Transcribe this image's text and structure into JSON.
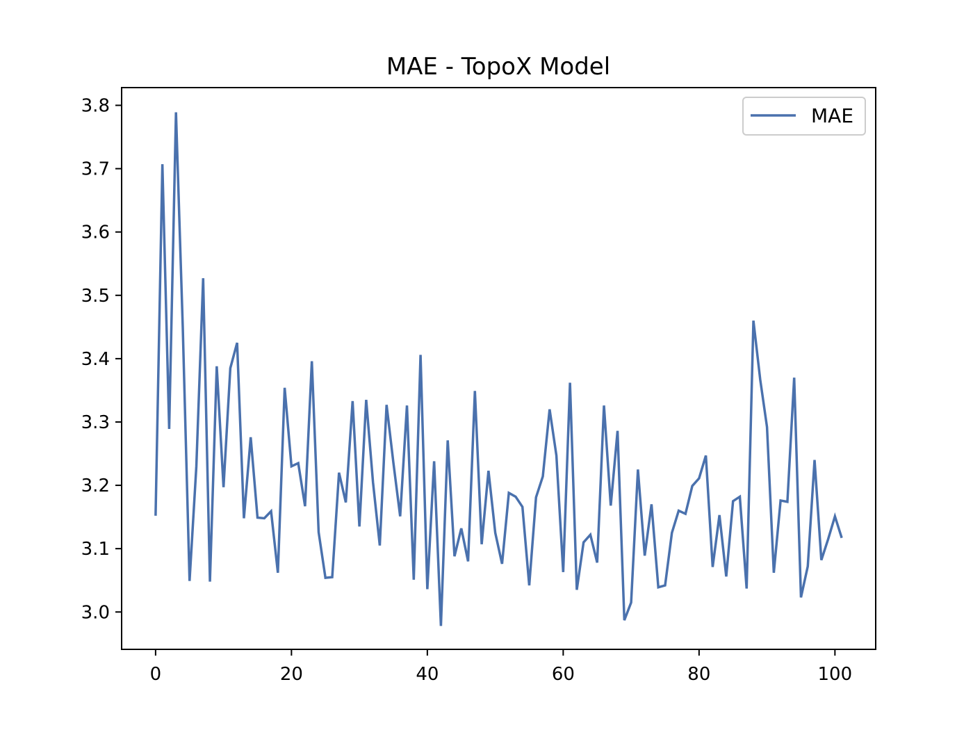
{
  "chart_data": {
    "type": "line",
    "title": "MAE - TopoX Model",
    "xlabel": "",
    "ylabel": "",
    "xlim": [
      -5,
      106
    ],
    "ylim": [
      2.941,
      3.828
    ],
    "xticks": [
      0,
      20,
      40,
      60,
      80,
      100
    ],
    "yticks": [
      3.0,
      3.1,
      3.2,
      3.3,
      3.4,
      3.5,
      3.6,
      3.7,
      3.8
    ],
    "grid": false,
    "legend_position": "top-right",
    "series": [
      {
        "name": "MAE",
        "color": "#4a71ad",
        "x": [
          0,
          1,
          2,
          3,
          4,
          5,
          6,
          7,
          8,
          9,
          10,
          11,
          12,
          13,
          14,
          15,
          16,
          17,
          18,
          19,
          20,
          21,
          22,
          23,
          24,
          25,
          26,
          27,
          28,
          29,
          30,
          31,
          32,
          33,
          34,
          35,
          36,
          37,
          38,
          39,
          40,
          41,
          42,
          43,
          44,
          45,
          46,
          47,
          48,
          49,
          50,
          51,
          52,
          53,
          54,
          55,
          56,
          57,
          58,
          59,
          60,
          61,
          62,
          63,
          64,
          65,
          66,
          67,
          68,
          69,
          70,
          71,
          72,
          73,
          74,
          75,
          76,
          77,
          78,
          79,
          80,
          81,
          82,
          83,
          84,
          85,
          86,
          87,
          88,
          89,
          90,
          91,
          92,
          93,
          94,
          95,
          96,
          97,
          98,
          99,
          100,
          101
        ],
        "values": [
          3.152,
          3.707,
          3.289,
          3.789,
          3.45,
          3.049,
          3.23,
          3.527,
          3.048,
          3.388,
          3.197,
          3.385,
          3.425,
          3.148,
          3.276,
          3.149,
          3.148,
          3.159,
          3.062,
          3.354,
          3.23,
          3.235,
          3.167,
          3.396,
          3.126,
          3.054,
          3.055,
          3.22,
          3.173,
          3.333,
          3.135,
          3.335,
          3.205,
          3.105,
          3.327,
          3.236,
          3.151,
          3.326,
          3.051,
          3.406,
          3.036,
          3.238,
          2.978,
          3.271,
          3.088,
          3.132,
          3.08,
          3.349,
          3.107,
          3.223,
          3.125,
          3.076,
          3.188,
          3.182,
          3.166,
          3.042,
          3.181,
          3.214,
          3.32,
          3.247,
          3.063,
          3.362,
          3.035,
          3.11,
          3.122,
          3.078,
          3.326,
          3.168,
          3.286,
          2.987,
          3.015,
          3.225,
          3.089,
          3.17,
          3.039,
          3.042,
          3.125,
          3.16,
          3.155,
          3.199,
          3.211,
          3.247,
          3.071,
          3.153,
          3.056,
          3.175,
          3.182,
          3.037,
          3.46,
          3.367,
          3.292,
          3.062,
          3.176,
          3.174,
          3.37,
          3.023,
          3.072,
          3.24,
          3.082,
          3.115,
          3.151,
          3.117
        ]
      }
    ]
  }
}
